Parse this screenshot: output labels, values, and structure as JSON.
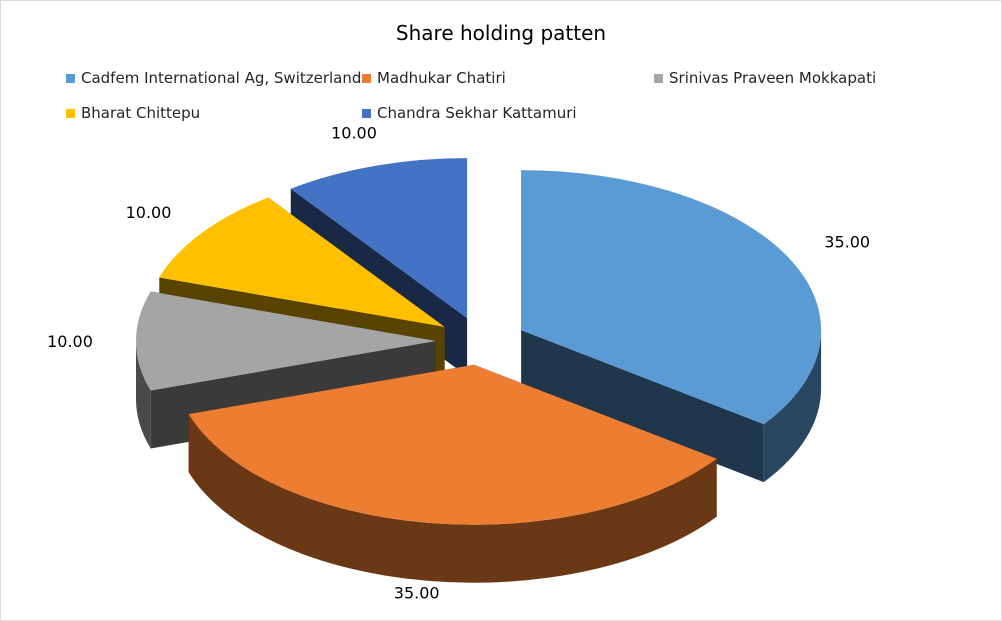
{
  "chart_data": {
    "type": "pie",
    "title": "Share holding patten",
    "legend_position": "top",
    "style": "3d-exploded",
    "slices": [
      {
        "label": "Cadfem International Ag, Switzerland",
        "value": 35.0,
        "display": "35.00",
        "color": "#5B9BD5"
      },
      {
        "label": "Madhukar Chatiri",
        "value": 35.0,
        "display": "35.00",
        "color": "#ED7D31"
      },
      {
        "label": "Srinivas Praveen Mokkapati",
        "value": 10.0,
        "display": "10.00",
        "color": "#A5A5A5"
      },
      {
        "label": "Bharat Chittepu",
        "value": 10.0,
        "display": "10.00",
        "color": "#FFC000"
      },
      {
        "label": "Chandra Sekhar Kattamuri",
        "value": 10.0,
        "display": "10.00",
        "color": "#4472C4"
      }
    ]
  }
}
